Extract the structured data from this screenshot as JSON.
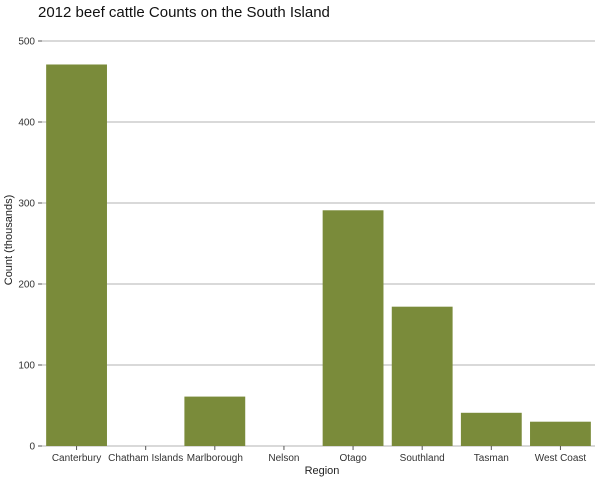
{
  "chart_data": {
    "type": "bar",
    "title": "2012 beef cattle Counts on the South Island",
    "xlabel": "Region",
    "ylabel": "Count (thousands)",
    "categories": [
      "Canterbury",
      "Chatham Islands",
      "Marlborough",
      "Nelson",
      "Otago",
      "Southland",
      "Tasman",
      "West Coast"
    ],
    "values": [
      471,
      0,
      61,
      0,
      291,
      172,
      41,
      30
    ],
    "ylim": [
      0,
      500
    ],
    "yticks": [
      0,
      100,
      200,
      300,
      400,
      500
    ],
    "grid": true,
    "legend": "none",
    "bar_color": "#7a8b3a",
    "grid_color": "#b3b3b3"
  }
}
